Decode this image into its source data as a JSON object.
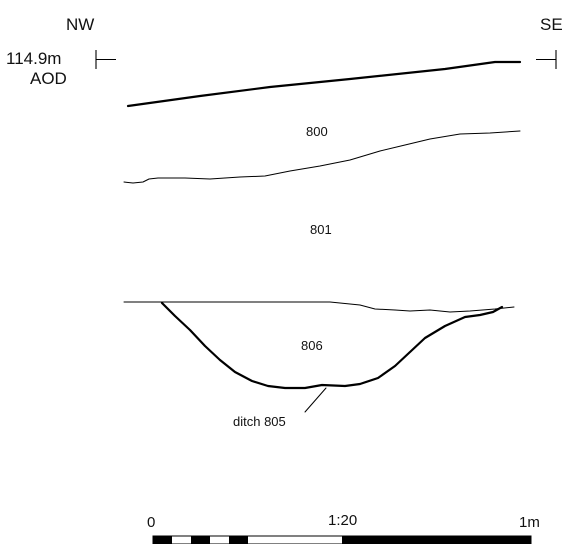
{
  "orientation": {
    "left": "NW",
    "right": "SE"
  },
  "datum": {
    "height": "114.9m",
    "reference": "AOD"
  },
  "contexts": {
    "topsoil": "800",
    "subsoil": "801",
    "fill": "806",
    "cut": "ditch 805"
  },
  "scale": {
    "ratio": "1:20",
    "start": "0",
    "end": "1m"
  }
}
